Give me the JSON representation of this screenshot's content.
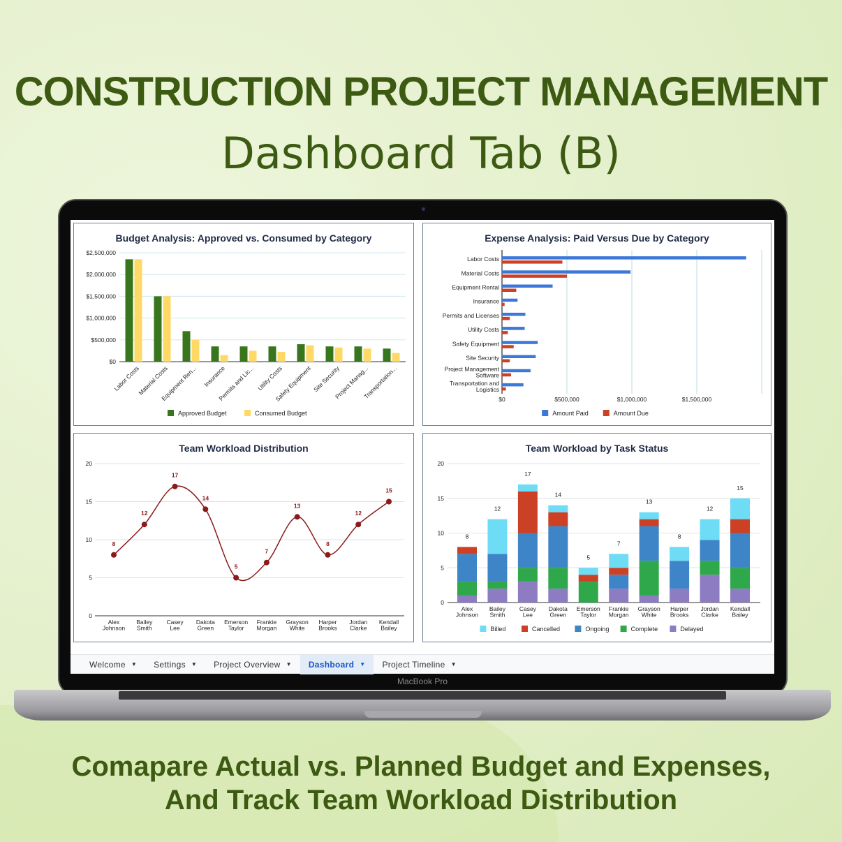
{
  "header": {
    "title": "CONSTRUCTION PROJECT MANAGEMENT",
    "subtitle": "Dashboard Tab (B)"
  },
  "footer": {
    "line1": "Comapare Actual vs. Planned Budget and Expenses,",
    "line2": "And Track Team Workload Distribution"
  },
  "laptop": {
    "brand": "MacBook Pro"
  },
  "tabs": [
    {
      "label": "Welcome",
      "active": false
    },
    {
      "label": "Settings",
      "active": false
    },
    {
      "label": "Project Overview",
      "active": false
    },
    {
      "label": "Dashboard",
      "active": true
    },
    {
      "label": "Project Timeline",
      "active": false
    }
  ],
  "colors": {
    "approved": "#38761d",
    "consumed": "#ffd966",
    "paid": "#3c78d8",
    "due": "#cc4125",
    "line": "#8b1a1a",
    "billed": "#6fdcf5",
    "cancelled": "#cc4125",
    "ongoing": "#3d85c6",
    "complete": "#2ea84a",
    "delayed": "#8e7cc3"
  },
  "chart_data": [
    {
      "type": "bar",
      "title": "Budget Analysis: Approved vs. Consumed by Category",
      "categories": [
        "Labor Costs",
        "Material Costs",
        "Equipment Ren...",
        "Insurance",
        "Permits and Lic...",
        "Utility Costs",
        "Safety Equipment",
        "Site Security",
        "Project Manag...",
        "Transportation..."
      ],
      "yticks": [
        "$0",
        "$500,000",
        "$1,000,000",
        "$1,500,000",
        "$2,000,000",
        "$2,500,000"
      ],
      "ylim": [
        0,
        2500000
      ],
      "grid": true,
      "legend": "bottom",
      "series": [
        {
          "name": "Approved Budget",
          "values": [
            2350000,
            1500000,
            700000,
            350000,
            350000,
            350000,
            400000,
            350000,
            350000,
            300000
          ]
        },
        {
          "name": "Consumed Budget",
          "values": [
            2350000,
            1500000,
            500000,
            150000,
            250000,
            225000,
            375000,
            325000,
            300000,
            200000
          ]
        }
      ]
    },
    {
      "type": "bar",
      "orientation": "horizontal",
      "title": "Expense Analysis: Paid Versus Due by Category",
      "categories": [
        "Labor Costs",
        "Material Costs",
        "Equipment Rental",
        "Insurance",
        "Permits and Licenses",
        "Utility Costs",
        "Safety Equipment",
        "Site Security",
        "Project Management Software",
        "Transportation and Logistics"
      ],
      "xticks": [
        "$0",
        "$500,000",
        "$1,000,000",
        "$1,500,000"
      ],
      "xlim": [
        0,
        2000000
      ],
      "grid": true,
      "legend": "bottom",
      "series": [
        {
          "name": "Amount Paid",
          "values": [
            1880000,
            990000,
            390000,
            120000,
            180000,
            175000,
            275000,
            260000,
            220000,
            165000
          ]
        },
        {
          "name": "Amount Due",
          "values": [
            465000,
            500000,
            110000,
            20000,
            60000,
            45000,
            90000,
            60000,
            70000,
            30000
          ]
        }
      ]
    },
    {
      "type": "line",
      "title": "Team Workload Distribution",
      "categories": [
        "Alex Johnson",
        "Bailey Smith",
        "Casey Lee",
        "Dakota Green",
        "Emerson Taylor",
        "Frankie Morgan",
        "Grayson White",
        "Harper Brooks",
        "Jordan Clarke",
        "Kendall Bailey"
      ],
      "values": [
        8,
        12,
        17,
        14,
        5,
        7,
        13,
        8,
        12,
        15
      ],
      "yticks": [
        "0",
        "5",
        "10",
        "15",
        "20"
      ],
      "ylim": [
        0,
        20
      ],
      "grid": true,
      "smooth": true
    },
    {
      "type": "bar",
      "stacked": true,
      "title": "Team Workload by Task Status",
      "categories": [
        "Alex Johnson",
        "Bailey Smith",
        "Casey Lee",
        "Dakota Green",
        "Emerson Taylor",
        "Frankie Morgan",
        "Grayson White",
        "Harper Brooks",
        "Jordan Clarke",
        "Kendall Bailey"
      ],
      "totals": [
        8,
        12,
        17,
        14,
        5,
        7,
        13,
        8,
        12,
        15
      ],
      "yticks": [
        "0",
        "5",
        "10",
        "15",
        "20"
      ],
      "ylim": [
        0,
        20
      ],
      "grid": true,
      "legend": "bottom",
      "series": [
        {
          "name": "Billed",
          "values": [
            0,
            5,
            1,
            1,
            1,
            2,
            1,
            2,
            3,
            3
          ]
        },
        {
          "name": "Cancelled",
          "values": [
            1,
            0,
            6,
            2,
            1,
            1,
            1,
            0,
            0,
            2
          ]
        },
        {
          "name": "Ongoing",
          "values": [
            4,
            4,
            5,
            6,
            0,
            2,
            5,
            4,
            3,
            5
          ]
        },
        {
          "name": "Complete",
          "values": [
            2,
            1,
            2,
            3,
            3,
            0,
            5,
            0,
            2,
            3
          ]
        },
        {
          "name": "Delayed",
          "values": [
            1,
            2,
            3,
            2,
            0,
            2,
            1,
            2,
            4,
            2
          ]
        }
      ]
    }
  ]
}
